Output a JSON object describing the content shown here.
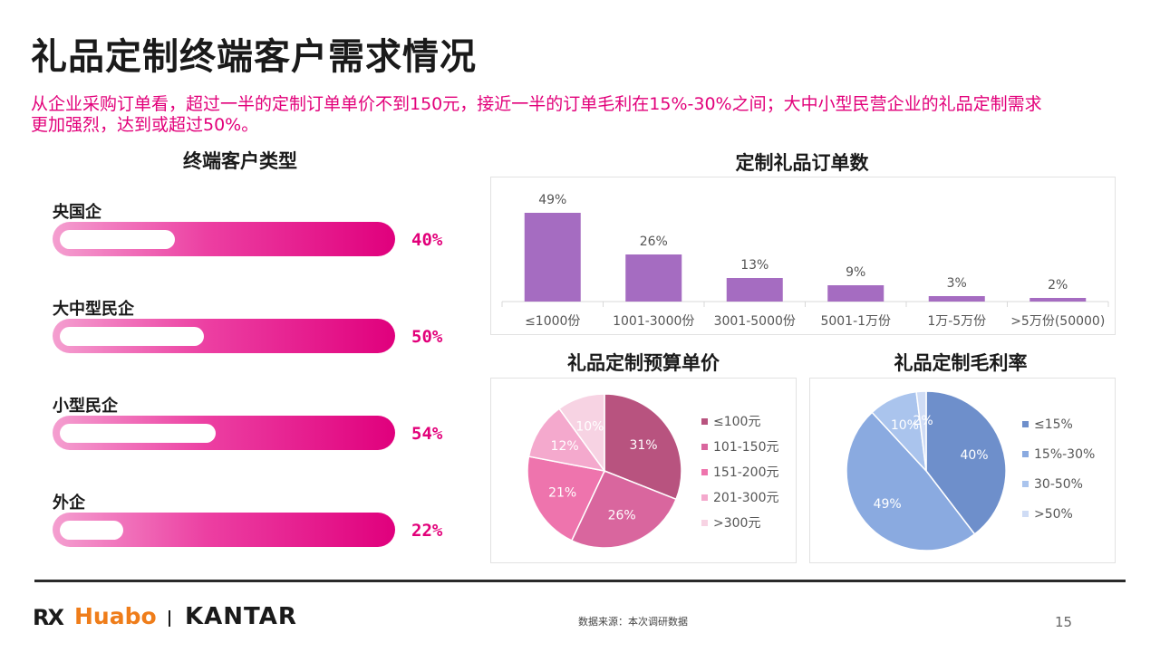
{
  "title": "礼品定制终端客户需求情况",
  "subtitle": "从企业采购订单看，超过一半的定制订单单价不到150元，接近一半的订单毛利在15%-30%之间；大中小型民营企业的礼品定制需求更加强烈，达到或超过50%。",
  "colors": {
    "accent": "#e2007a",
    "bar_column": "#a56cc1",
    "budget": [
      "#b8537f",
      "#d9669e",
      "#ee74ad",
      "#f4a9cd",
      "#f7d3e3"
    ],
    "margin": [
      "#6e8fcb",
      "#8aaae0",
      "#aac4ed",
      "#cfdcf5"
    ]
  },
  "chart_data": [
    {
      "type": "bar",
      "title": "终端客户类型",
      "categories": [
        "央国企",
        "大中型民企",
        "小型民企",
        "外企"
      ],
      "values": [
        40,
        50,
        54,
        22
      ],
      "labels": [
        "40%",
        "50%",
        "54%",
        "22%"
      ],
      "unit": "%"
    },
    {
      "type": "bar",
      "title": "定制礼品订单数",
      "categories": [
        "≤1000份",
        "1001-3000份",
        "3001-5000份",
        "5001-1万份",
        "1万-5万份",
        ">5万份(50000)"
      ],
      "values": [
        49,
        26,
        13,
        9,
        3,
        2
      ],
      "labels": [
        "49%",
        "26%",
        "13%",
        "9%",
        "3%",
        "2%"
      ],
      "unit": "%"
    },
    {
      "type": "pie",
      "title": "礼品定制预算单价",
      "categories": [
        "≤100元",
        "101-150元",
        "151-200元",
        "201-300元",
        ">300元"
      ],
      "values": [
        31,
        26,
        21,
        12,
        10
      ],
      "labels": [
        "31%",
        "26%",
        "21%",
        "12%",
        "10%"
      ],
      "legend_position": "right"
    },
    {
      "type": "pie",
      "title": "礼品定制毛利率",
      "categories": [
        "≤15%",
        "15%-30%",
        "30-50%",
        ">50%"
      ],
      "values": [
        40,
        49,
        10,
        2
      ],
      "labels": [
        "40%",
        "49%",
        "10%",
        "2%"
      ],
      "legend_position": "right"
    }
  ],
  "footer": {
    "logo_rx": "RX",
    "logo_huabo": "Huabo",
    "logo_kantar": "KANTAR",
    "source": "数据来源：本次调研数据",
    "page": "15"
  }
}
